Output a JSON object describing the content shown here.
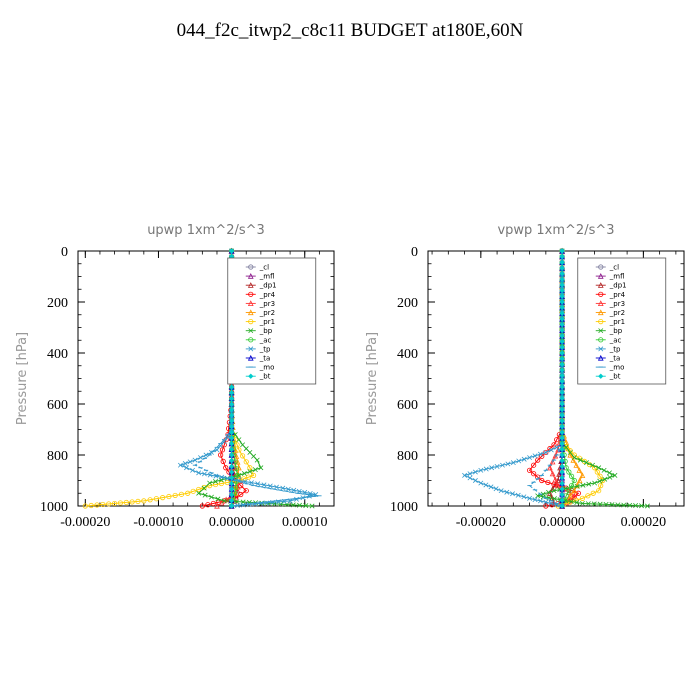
{
  "title": "044_f2c_itwp2_c8c11  BUDGET at180E,60N",
  "legend_labels": [
    "_cl",
    "_mfl",
    "_dp1",
    "_pr4",
    "_pr3",
    "_pr2",
    "_pr1",
    "_bp",
    "_ac",
    "_tp",
    "_ta",
    "_mo",
    "_bt"
  ],
  "chart_data": [
    {
      "type": "line",
      "title": "upwp   1xm^2/s^3",
      "ylabel": "Pressure [hPa]",
      "ylim": [
        1000,
        0
      ],
      "y_ticks": [
        0,
        200,
        400,
        600,
        800,
        1000
      ],
      "y_tick_labels": [
        "0",
        "200",
        "400",
        "600",
        "800",
        "1000"
      ],
      "xlim": [
        -0.00021,
        0.00014
      ],
      "x_ticks": [
        -0.0002,
        -0.0001,
        0.0,
        0.0001
      ],
      "x_tick_labels": [
        "-0.00020",
        "-0.00010",
        "0.00000",
        "0.00010"
      ],
      "legend": "top-right",
      "series": [
        {
          "name": "_cl",
          "color": "#7f7f9f",
          "marker": "o",
          "x": [
            0,
            0,
            0,
            0,
            0,
            0,
            0
          ],
          "y": [
            0,
            200,
            400,
            600,
            800,
            900,
            1000
          ]
        },
        {
          "name": "_mfl",
          "color": "#8b1a8b",
          "marker": "tri",
          "x": [
            0,
            0,
            0,
            0,
            0,
            0,
            0
          ],
          "y": [
            0,
            200,
            400,
            600,
            800,
            900,
            1000
          ]
        },
        {
          "name": "_dp1",
          "color": "#b22222",
          "marker": "tri",
          "x": [
            0,
            0,
            0,
            0,
            2e-06,
            5e-06,
            8e-06,
            4e-06,
            0
          ],
          "y": [
            0,
            300,
            600,
            800,
            850,
            900,
            940,
            980,
            1000
          ]
        },
        {
          "name": "_pr4",
          "color": "#ff0000",
          "marker": "o",
          "x": [
            0,
            0,
            -5e-06,
            -1.5e-05,
            -8e-06,
            5e-06,
            2e-05,
            5e-06,
            -4e-05
          ],
          "y": [
            0,
            600,
            720,
            800,
            850,
            900,
            940,
            970,
            1000
          ]
        },
        {
          "name": "_pr3",
          "color": "#ff3333",
          "marker": "tri",
          "x": [
            0,
            0,
            0,
            5e-06,
            1.2e-05,
            5e-06,
            -2e-05
          ],
          "y": [
            0,
            600,
            700,
            850,
            900,
            950,
            1000
          ]
        },
        {
          "name": "_pr2",
          "color": "#ff9900",
          "marker": "tri",
          "x": [
            0,
            0,
            3e-06,
            1e-05,
            5e-06,
            0
          ],
          "y": [
            0,
            600,
            760,
            850,
            950,
            1000
          ]
        },
        {
          "name": "_pr1",
          "color": "#ffcc00",
          "marker": "o",
          "x": [
            0,
            0,
            1e-05,
            2.5e-05,
            3e-05,
            1e-05,
            -3e-05,
            -6e-05,
            -0.00012,
            -0.0002
          ],
          "y": [
            0,
            700,
            780,
            850,
            880,
            900,
            920,
            950,
            980,
            1000
          ]
        },
        {
          "name": "_bp",
          "color": "#22aa22",
          "marker": "x",
          "x": [
            0,
            0,
            1.5e-05,
            3.5e-05,
            4e-05,
            1e-05,
            -3e-05,
            -4.5e-05,
            -1e-05,
            5e-05,
            0.00011
          ],
          "y": [
            0,
            700,
            760,
            820,
            850,
            880,
            910,
            950,
            980,
            990,
            1000
          ]
        },
        {
          "name": "_ac",
          "color": "#33cc33",
          "marker": "o",
          "x": [
            0,
            0,
            3e-06,
            8e-06,
            4e-06,
            0
          ],
          "y": [
            0,
            700,
            800,
            880,
            950,
            1000
          ]
        },
        {
          "name": "_tp",
          "color": "#3399cc",
          "marker": "x",
          "x": [
            0,
            0,
            -5e-06,
            -2e-05,
            -5e-05,
            -7e-05,
            -4.5e-05,
            1e-05,
            7e-05,
            0.000115,
            8e-05,
            0
          ],
          "y": [
            0,
            700,
            730,
            780,
            820,
            840,
            870,
            900,
            930,
            955,
            980,
            1000
          ]
        },
        {
          "name": "_ta",
          "color": "#0000cc",
          "marker": "tri",
          "x": [
            0,
            0,
            0,
            0,
            0,
            0
          ],
          "y": [
            0,
            200,
            400,
            600,
            800,
            1000
          ]
        },
        {
          "name": "_mo",
          "color": "#3399cc",
          "marker": "dash",
          "x": [
            0,
            0,
            -1e-05,
            -3e-05,
            -5e-05,
            -2e-05,
            3e-05,
            9e-05,
            0.00012,
            0
          ],
          "y": [
            0,
            700,
            740,
            800,
            840,
            880,
            920,
            950,
            960,
            1000
          ]
        },
        {
          "name": "_bt",
          "color": "#00cccc",
          "marker": "diamond",
          "x": [
            0,
            0,
            0,
            0,
            0,
            0
          ],
          "y": [
            0,
            200,
            400,
            600,
            800,
            1000
          ]
        }
      ]
    },
    {
      "type": "line",
      "title": "vpwp   1xm^2/s^3",
      "ylabel": "Pressure [hPa]",
      "ylim": [
        1000,
        0
      ],
      "y_ticks": [
        0,
        200,
        400,
        600,
        800,
        1000
      ],
      "y_tick_labels": [
        "0",
        "200",
        "400",
        "600",
        "800",
        "1000"
      ],
      "xlim": [
        -0.00033,
        0.0003
      ],
      "x_ticks": [
        -0.0002,
        0.0,
        0.0002
      ],
      "x_tick_labels": [
        "-0.00020",
        "0.00000",
        "0.00020"
      ],
      "legend": "top-right",
      "series": [
        {
          "name": "_cl",
          "color": "#7f7f9f",
          "marker": "o",
          "x": [
            0,
            0,
            0,
            0,
            0,
            0,
            0
          ],
          "y": [
            0,
            200,
            400,
            600,
            800,
            900,
            1000
          ]
        },
        {
          "name": "_mfl",
          "color": "#8b1a8b",
          "marker": "tri",
          "x": [
            0,
            0,
            0,
            0,
            0,
            0,
            0
          ],
          "y": [
            0,
            200,
            400,
            600,
            800,
            900,
            1000
          ]
        },
        {
          "name": "_dp1",
          "color": "#b22222",
          "marker": "tri",
          "x": [
            0,
            0,
            0,
            -1e-05,
            -3e-05,
            -2e-05,
            0
          ],
          "y": [
            0,
            600,
            800,
            900,
            950,
            990,
            1000
          ]
        },
        {
          "name": "_pr4",
          "color": "#ff0000",
          "marker": "o",
          "x": [
            0,
            0,
            -2e-05,
            -6e-05,
            -8e-05,
            -5e-05,
            1e-05,
            4e-05,
            2e-05,
            -4e-05
          ],
          "y": [
            0,
            700,
            760,
            820,
            860,
            900,
            930,
            950,
            980,
            1000
          ]
        },
        {
          "name": "_pr3",
          "color": "#ff3333",
          "marker": "tri",
          "x": [
            0,
            0,
            -1e-05,
            -3e-05,
            -1e-05,
            3e-05,
            0
          ],
          "y": [
            0,
            700,
            780,
            850,
            920,
            960,
            1000
          ]
        },
        {
          "name": "_pr2",
          "color": "#ff9900",
          "marker": "tri",
          "x": [
            0,
            0,
            2e-05,
            5e-05,
            3e-05,
            0
          ],
          "y": [
            0,
            700,
            800,
            880,
            940,
            1000
          ]
        },
        {
          "name": "_pr1",
          "color": "#ffcc00",
          "marker": "o",
          "x": [
            0,
            0,
            3e-05,
            8e-05,
            0.0001,
            9e-05,
            5e-05,
            -1e-05
          ],
          "y": [
            0,
            750,
            800,
            850,
            900,
            940,
            970,
            1000
          ]
        },
        {
          "name": "_bp",
          "color": "#22aa22",
          "marker": "x",
          "x": [
            0,
            0,
            3e-05,
            9e-05,
            0.00013,
            8e-05,
            -2e-05,
            -6e-05,
            5e-05,
            0.00021
          ],
          "y": [
            0,
            750,
            810,
            850,
            880,
            910,
            940,
            960,
            990,
            1000
          ]
        },
        {
          "name": "_ac",
          "color": "#33cc33",
          "marker": "o",
          "x": [
            0,
            0,
            1e-05,
            3e-05,
            1e-05,
            0
          ],
          "y": [
            0,
            750,
            850,
            900,
            960,
            1000
          ]
        },
        {
          "name": "_tp",
          "color": "#3399cc",
          "marker": "x",
          "x": [
            0,
            0,
            -4e-05,
            -0.00012,
            -0.0002,
            -0.00024,
            -0.0002,
            -0.00015,
            -8e-05,
            0
          ],
          "y": [
            0,
            760,
            790,
            830,
            860,
            880,
            910,
            940,
            970,
            1000
          ]
        },
        {
          "name": "_ta",
          "color": "#0000cc",
          "marker": "tri",
          "x": [
            0,
            0,
            0,
            0,
            0,
            0
          ],
          "y": [
            0,
            200,
            400,
            600,
            800,
            1000
          ]
        },
        {
          "name": "_mo",
          "color": "#3399cc",
          "marker": "dash",
          "x": [
            0,
            0,
            -2e-05,
            -5e-05,
            -8e-05,
            -4e-05,
            0
          ],
          "y": [
            0,
            760,
            820,
            880,
            920,
            970,
            1000
          ]
        },
        {
          "name": "_bt",
          "color": "#00cccc",
          "marker": "diamond",
          "x": [
            0,
            0,
            0,
            0,
            0,
            0
          ],
          "y": [
            0,
            200,
            400,
            600,
            800,
            1000
          ]
        }
      ]
    }
  ]
}
